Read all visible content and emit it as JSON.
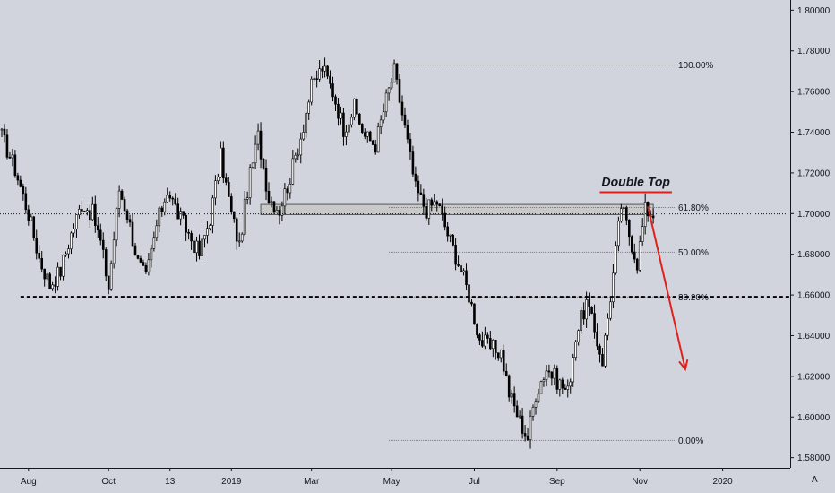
{
  "chart_data": {
    "type": "candlestick",
    "instrument_note": "",
    "ylim": [
      1.575,
      1.805
    ],
    "y_ticks": [
      "1.80000",
      "1.78000",
      "1.76000",
      "1.74000",
      "1.72000",
      "1.70000",
      "1.68000",
      "1.66000",
      "1.64000",
      "1.62000",
      "1.60000",
      "1.58000"
    ],
    "y_tick_values": [
      1.8,
      1.78,
      1.76,
      1.74,
      1.72,
      1.7,
      1.68,
      1.66,
      1.64,
      1.62,
      1.6,
      1.58
    ],
    "x_ticks": [
      "Aug",
      "Oct",
      "13",
      "2019",
      "Mar",
      "May",
      "Jul",
      "Sep",
      "Nov",
      "2020"
    ],
    "x_tick_index": [
      10,
      40,
      63,
      86,
      116,
      146,
      177,
      208,
      239,
      270
    ],
    "total_bars": 290,
    "price_path": [
      [
        0,
        1.738
      ],
      [
        5,
        1.722
      ],
      [
        10,
        1.7
      ],
      [
        14,
        1.678
      ],
      [
        18,
        1.665
      ],
      [
        22,
        1.672
      ],
      [
        26,
        1.69
      ],
      [
        30,
        1.705
      ],
      [
        34,
        1.7
      ],
      [
        37,
        1.686
      ],
      [
        40,
        1.664
      ],
      [
        44,
        1.712
      ],
      [
        47,
        1.7
      ],
      [
        51,
        1.676
      ],
      [
        54,
        1.668
      ],
      [
        58,
        1.694
      ],
      [
        62,
        1.712
      ],
      [
        66,
        1.7
      ],
      [
        70,
        1.69
      ],
      [
        74,
        1.68
      ],
      [
        78,
        1.698
      ],
      [
        82,
        1.728
      ],
      [
        86,
        1.7
      ],
      [
        89,
        1.684
      ],
      [
        92,
        1.712
      ],
      [
        96,
        1.738
      ],
      [
        100,
        1.708
      ],
      [
        104,
        1.702
      ],
      [
        108,
        1.718
      ],
      [
        112,
        1.738
      ],
      [
        116,
        1.762
      ],
      [
        120,
        1.772
      ],
      [
        124,
        1.76
      ],
      [
        128,
        1.742
      ],
      [
        132,
        1.752
      ],
      [
        136,
        1.738
      ],
      [
        140,
        1.734
      ],
      [
        144,
        1.756
      ],
      [
        147,
        1.77
      ],
      [
        151,
        1.742
      ],
      [
        155,
        1.712
      ],
      [
        159,
        1.702
      ],
      [
        163,
        1.706
      ],
      [
        167,
        1.69
      ],
      [
        171,
        1.676
      ],
      [
        175,
        1.66
      ],
      [
        179,
        1.638
      ],
      [
        183,
        1.634
      ],
      [
        187,
        1.632
      ],
      [
        190,
        1.612
      ],
      [
        194,
        1.598
      ],
      [
        197,
        1.59
      ],
      [
        200,
        1.612
      ],
      [
        204,
        1.624
      ],
      [
        208,
        1.618
      ],
      [
        212,
        1.612
      ],
      [
        215,
        1.64
      ],
      [
        219,
        1.656
      ],
      [
        222,
        1.642
      ],
      [
        225,
        1.628
      ],
      [
        229,
        1.67
      ],
      [
        232,
        1.704
      ],
      [
        235,
        1.69
      ],
      [
        238,
        1.676
      ],
      [
        241,
        1.702
      ],
      [
        244,
        1.7
      ]
    ],
    "support_level": 1.65908,
    "support_label": "1.65908",
    "current_price": 1.69987,
    "current_label": "1.69987",
    "resistance_zone": {
      "top": 1.7045,
      "bottom": 1.6995,
      "from_index": 97,
      "to_index": 244
    },
    "fib_levels": [
      {
        "label": "100.00%",
        "value": 1.773
      },
      {
        "label": "61.80%",
        "value": 1.703
      },
      {
        "label": "50.00%",
        "value": 1.681
      },
      {
        "label": "38.20%",
        "value": 1.659
      },
      {
        "label": "0.00%",
        "value": 1.5885
      }
    ],
    "fib_range_index": [
      145,
      252
    ],
    "annotation": {
      "text": "Double Top",
      "line_value": 1.7105,
      "from_index": 224,
      "to_index": 251
    },
    "arrow": {
      "from_index": 242,
      "from_value": 1.7035,
      "to_index": 256,
      "to_value": 1.6235
    },
    "colors": {
      "background": "#d1d4dc",
      "candle": "#000000",
      "support_line": "#000000",
      "price_label_bg": "#ffffff",
      "zone_fill": "#c9c9c9",
      "zone_stroke": "#555555",
      "annotation": "#e0201b",
      "fib_line": "#7a7a7a"
    }
  },
  "watermark_glyph": "A"
}
